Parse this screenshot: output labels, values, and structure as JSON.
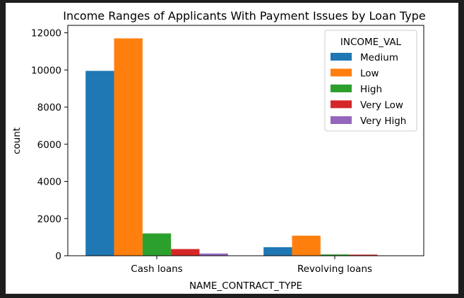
{
  "chart_data": {
    "type": "bar",
    "title": "Income Ranges of Applicants With Payment Issues by Loan Type",
    "xlabel": "NAME_CONTRACT_TYPE",
    "ylabel": "count",
    "categories": [
      "Cash loans",
      "Revolving loans"
    ],
    "ylim": [
      0,
      12400
    ],
    "yticks": [
      0,
      2000,
      4000,
      6000,
      8000,
      10000,
      12000
    ],
    "grid": false,
    "legend": {
      "title": "INCOME_VAL",
      "placement": "top-right"
    },
    "series": [
      {
        "name": "Medium",
        "color": "#1f77b4",
        "values": [
          9950,
          460
        ]
      },
      {
        "name": "Low",
        "color": "#ff7f0e",
        "values": [
          11700,
          1080
        ]
      },
      {
        "name": "High",
        "color": "#2ca02c",
        "values": [
          1200,
          70
        ]
      },
      {
        "name": "Very Low",
        "color": "#d62728",
        "values": [
          360,
          60
        ]
      },
      {
        "name": "Very High",
        "color": "#9467bd",
        "values": [
          120,
          10
        ]
      }
    ]
  }
}
